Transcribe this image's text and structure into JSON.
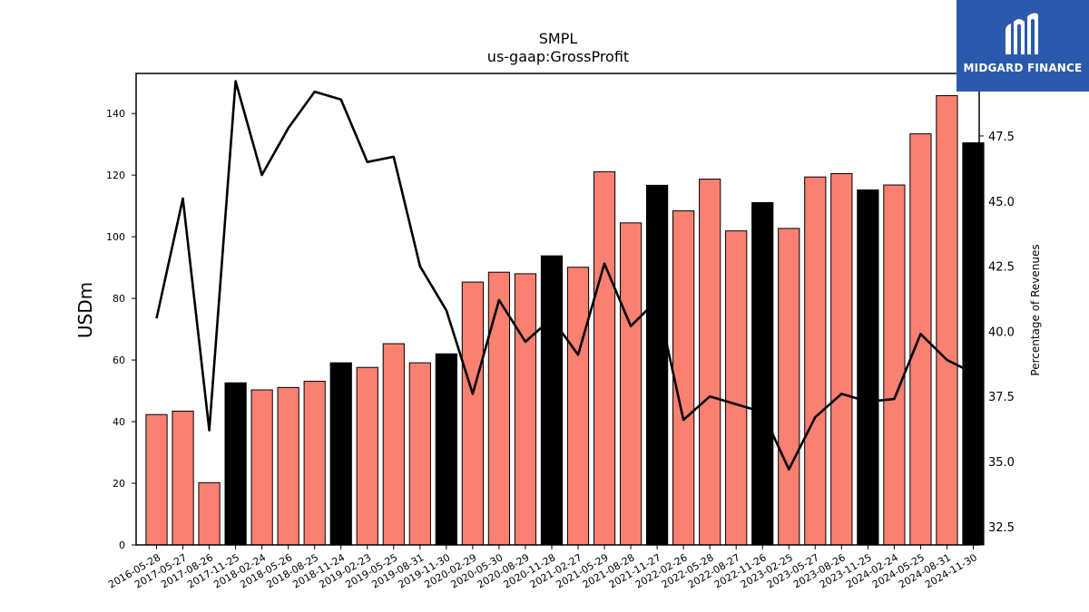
{
  "brand": {
    "name": "MIDGARD FINANCE",
    "bg_color": "#2b5aad",
    "mark_icon": "midgard-logo-icon"
  },
  "chart_data": {
    "type": "bar",
    "title": "SMPL",
    "subtitle": "us-gaap:GrossProfit",
    "ylabel": "USDm",
    "y2label": "Percentage of Revenues",
    "ylim": [
      0,
      153
    ],
    "y2lim": [
      31.8,
      49.9
    ],
    "yticks": [
      0,
      20,
      40,
      60,
      80,
      100,
      120,
      140
    ],
    "y2ticks": [
      32.5,
      35.0,
      37.5,
      40.0,
      42.5,
      45.0,
      47.5
    ],
    "categories": [
      "2016-05-28",
      "2017-05-27",
      "2017-08-26",
      "2017-11-25",
      "2018-02-24",
      "2018-05-26",
      "2018-08-25",
      "2018-11-24",
      "2019-02-23",
      "2019-05-25",
      "2019-08-31",
      "2019-11-30",
      "2020-02-29",
      "2020-05-30",
      "2020-08-29",
      "2020-11-28",
      "2021-02-27",
      "2021-05-29",
      "2021-08-28",
      "2021-11-27",
      "2022-02-26",
      "2022-05-28",
      "2022-08-27",
      "2022-11-26",
      "2023-02-25",
      "2023-05-27",
      "2023-08-26",
      "2023-11-25",
      "2024-02-24",
      "2024-05-25",
      "2024-08-31",
      "2024-11-30"
    ],
    "series": [
      {
        "type": "bar",
        "values": [
          42.3,
          43.4,
          20.2,
          52.6,
          50.3,
          51.1,
          53.1,
          59.1,
          57.6,
          65.3,
          59.1,
          62.0,
          85.3,
          88.5,
          88.0,
          93.8,
          90.1,
          121.1,
          104.5,
          116.7,
          108.4,
          118.7,
          101.9,
          111.1,
          102.7,
          119.4,
          120.5,
          115.2,
          116.8,
          133.4,
          145.8,
          130.5
        ],
        "bar_colors": [
          "#fa8072",
          "#fa8072",
          "#fa8072",
          "#000000",
          "#fa8072",
          "#fa8072",
          "#fa8072",
          "#000000",
          "#fa8072",
          "#fa8072",
          "#fa8072",
          "#000000",
          "#fa8072",
          "#fa8072",
          "#fa8072",
          "#000000",
          "#fa8072",
          "#fa8072",
          "#fa8072",
          "#000000",
          "#fa8072",
          "#fa8072",
          "#fa8072",
          "#000000",
          "#fa8072",
          "#fa8072",
          "#fa8072",
          "#000000",
          "#fa8072",
          "#fa8072",
          "#fa8072",
          "#000000"
        ]
      },
      {
        "type": "line",
        "axis": "right",
        "color": "#000000",
        "values": [
          40.5,
          45.1,
          36.2,
          49.6,
          46.0,
          47.8,
          49.2,
          48.9,
          46.5,
          46.7,
          42.5,
          40.8,
          37.6,
          41.2,
          39.6,
          40.5,
          39.1,
          42.6,
          40.2,
          41.2,
          36.6,
          37.5,
          37.2,
          36.9,
          34.7,
          36.7,
          37.6,
          37.3,
          37.4,
          39.9,
          38.9,
          38.4
        ]
      }
    ],
    "grid": false,
    "legend": "none"
  }
}
